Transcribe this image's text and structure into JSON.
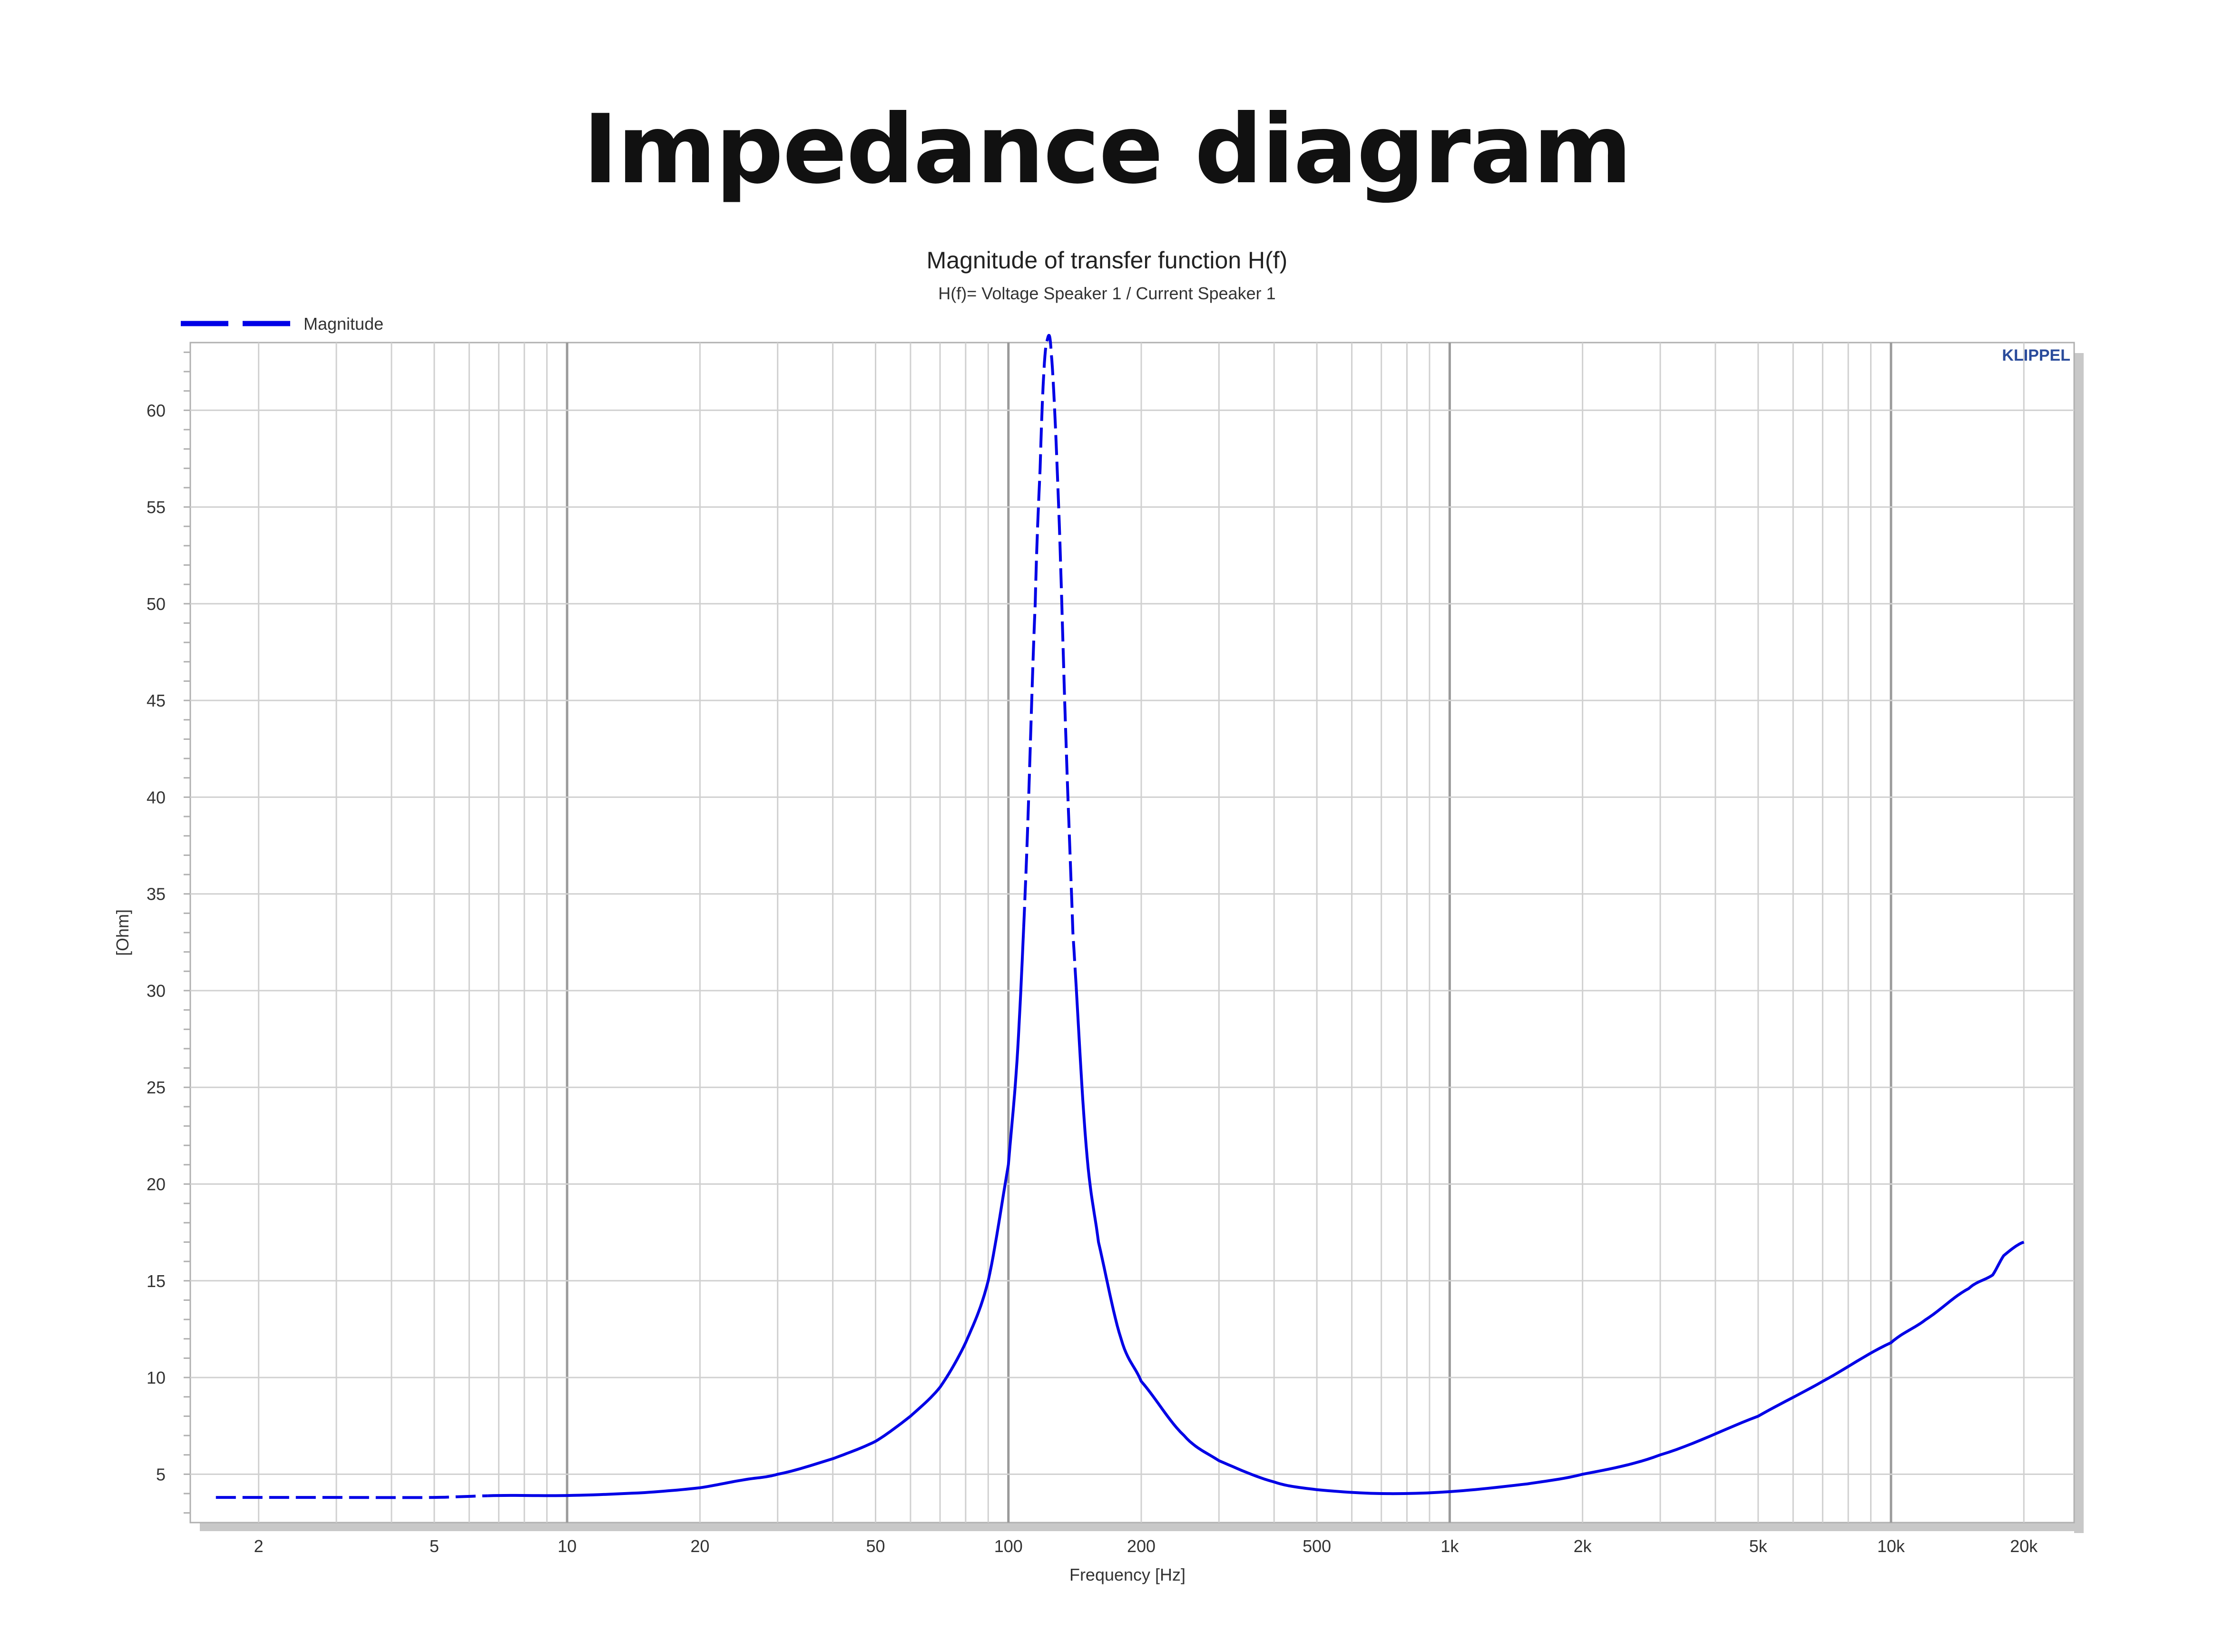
{
  "page": {
    "title": "Impedance diagram"
  },
  "chart_data": {
    "type": "line",
    "title": "Magnitude of transfer function H(f)",
    "subtitle": "H(f)= Voltage Speaker 1 / Current Speaker 1",
    "brand": "KLIPPEL",
    "xlabel": "Frequency [Hz]",
    "ylabel": "[Ohm]",
    "x_scale": "log",
    "xlim": [
      1.4,
      26000
    ],
    "ylim": [
      2.5,
      63.5
    ],
    "grid": true,
    "legend_position": "top-left",
    "x_ticks": [
      {
        "value": 2,
        "label": "2"
      },
      {
        "value": 5,
        "label": "5"
      },
      {
        "value": 10,
        "label": "10"
      },
      {
        "value": 20,
        "label": "20"
      },
      {
        "value": 50,
        "label": "50"
      },
      {
        "value": 100,
        "label": "100"
      },
      {
        "value": 200,
        "label": "200"
      },
      {
        "value": 500,
        "label": "500"
      },
      {
        "value": 1000,
        "label": "1k"
      },
      {
        "value": 2000,
        "label": "2k"
      },
      {
        "value": 5000,
        "label": "5k"
      },
      {
        "value": 10000,
        "label": "10k"
      },
      {
        "value": 20000,
        "label": "20k"
      }
    ],
    "y_ticks": [
      {
        "value": 5,
        "label": "5"
      },
      {
        "value": 10,
        "label": "10"
      },
      {
        "value": 15,
        "label": "15"
      },
      {
        "value": 20,
        "label": "20"
      },
      {
        "value": 25,
        "label": "25"
      },
      {
        "value": 30,
        "label": "30"
      },
      {
        "value": 35,
        "label": "35"
      },
      {
        "value": 40,
        "label": "40"
      },
      {
        "value": 45,
        "label": "45"
      },
      {
        "value": 50,
        "label": "50"
      },
      {
        "value": 55,
        "label": "55"
      },
      {
        "value": 60,
        "label": "60"
      }
    ],
    "series": [
      {
        "name": "Magnitude",
        "color": "#0000e6",
        "style": "dashed-then-solid",
        "x": [
          1.6,
          2,
          3,
          5,
          7,
          10,
          15,
          20,
          25,
          30,
          40,
          50,
          60,
          70,
          80,
          90,
          100,
          105,
          110,
          115,
          118,
          120,
          122,
          125,
          130,
          135,
          140,
          150,
          160,
          180,
          200,
          250,
          300,
          400,
          500,
          700,
          1000,
          1500,
          2000,
          3000,
          5000,
          7000,
          10000,
          12000,
          15000,
          17000,
          18000,
          20000
        ],
        "y": [
          3.8,
          3.8,
          3.8,
          3.8,
          3.9,
          3.9,
          4.05,
          4.3,
          4.7,
          5.0,
          5.8,
          6.7,
          8.0,
          9.5,
          11.8,
          15.0,
          21.0,
          27.0,
          37.0,
          50.0,
          57.0,
          61.5,
          63.5,
          63.0,
          55.0,
          43.0,
          33.0,
          22.0,
          17.0,
          12.0,
          9.8,
          7.0,
          5.7,
          4.6,
          4.2,
          4.0,
          4.1,
          4.5,
          5.0,
          6.0,
          8.0,
          9.8,
          11.8,
          13.0,
          14.6,
          15.3,
          16.3,
          17.0
        ]
      }
    ]
  }
}
